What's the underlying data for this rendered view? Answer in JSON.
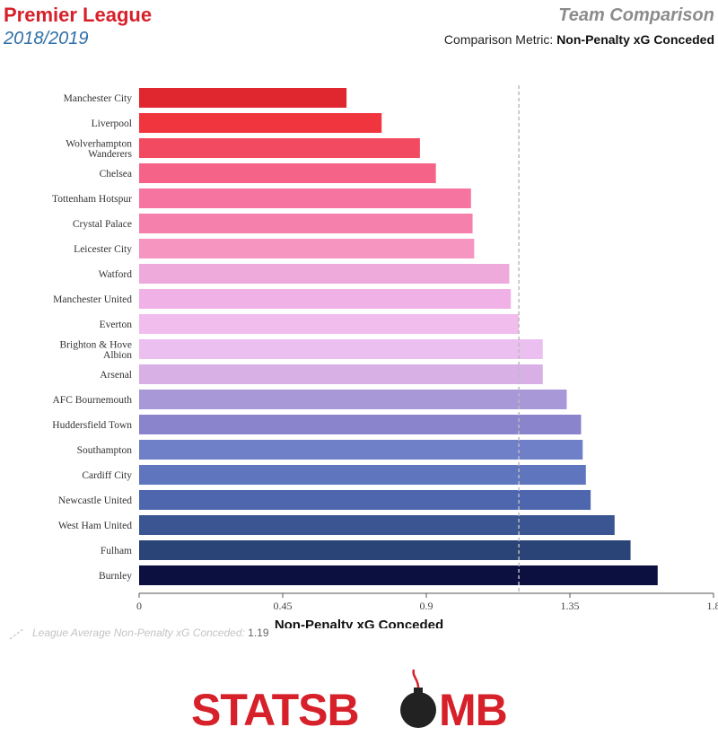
{
  "header": {
    "league": "Premier League",
    "season": "2018/2019",
    "panel_title": "Team Comparison",
    "metric_prefix": "Comparison Metric:",
    "metric_name": "Non-Penalty xG Conceded"
  },
  "reference": {
    "label": "League Average Non-Penalty xG Conceded:",
    "value": "1.19",
    "value_num": 1.19
  },
  "logo": {
    "text_left": "STATSB",
    "text_right": "MB",
    "brand_color": "#d6202a",
    "bomb_color": "#222222"
  },
  "chart_data": {
    "type": "bar",
    "orientation": "horizontal",
    "xlabel": "Non-Penalty xG Conceded",
    "xlim": [
      0,
      1.8
    ],
    "xticks": [
      0,
      0.45,
      0.9,
      1.35,
      1.8
    ],
    "xtick_labels": [
      "0",
      "0.45",
      "0.9",
      "1.35",
      "1.8"
    ],
    "grid": false,
    "categories": [
      [
        "Manchester City"
      ],
      [
        "Liverpool"
      ],
      [
        "Wolverhampton",
        "Wanderers"
      ],
      [
        "Chelsea"
      ],
      [
        "Tottenham Hotspur"
      ],
      [
        "Crystal Palace"
      ],
      [
        "Leicester City"
      ],
      [
        "Watford"
      ],
      [
        "Manchester United"
      ],
      [
        "Everton"
      ],
      [
        "Brighton & Hove",
        "Albion"
      ],
      [
        "Arsenal"
      ],
      [
        "AFC Bournemouth"
      ],
      [
        "Huddersfield Town"
      ],
      [
        "Southampton"
      ],
      [
        "Cardiff City"
      ],
      [
        "Newcastle United"
      ],
      [
        "West Ham United"
      ],
      [
        "Fulham"
      ],
      [
        "Burnley"
      ]
    ],
    "values": [
      0.65,
      0.76,
      0.88,
      0.93,
      1.04,
      1.045,
      1.05,
      1.16,
      1.165,
      1.19,
      1.265,
      1.265,
      1.34,
      1.385,
      1.39,
      1.4,
      1.415,
      1.49,
      1.54,
      1.625
    ],
    "colors": [
      "#e0272f",
      "#f0353f",
      "#f24a60",
      "#f56488",
      "#f574a0",
      "#f580ac",
      "#f595c0",
      "#eeaadb",
      "#f0b2e6",
      "#f1bded",
      "#ebbff0",
      "#d8b0e6",
      "#a898d8",
      "#8a84cc",
      "#7080c8",
      "#5f76be",
      "#4e66ae",
      "#3a5592",
      "#2a4478",
      "#0c1040"
    ]
  }
}
